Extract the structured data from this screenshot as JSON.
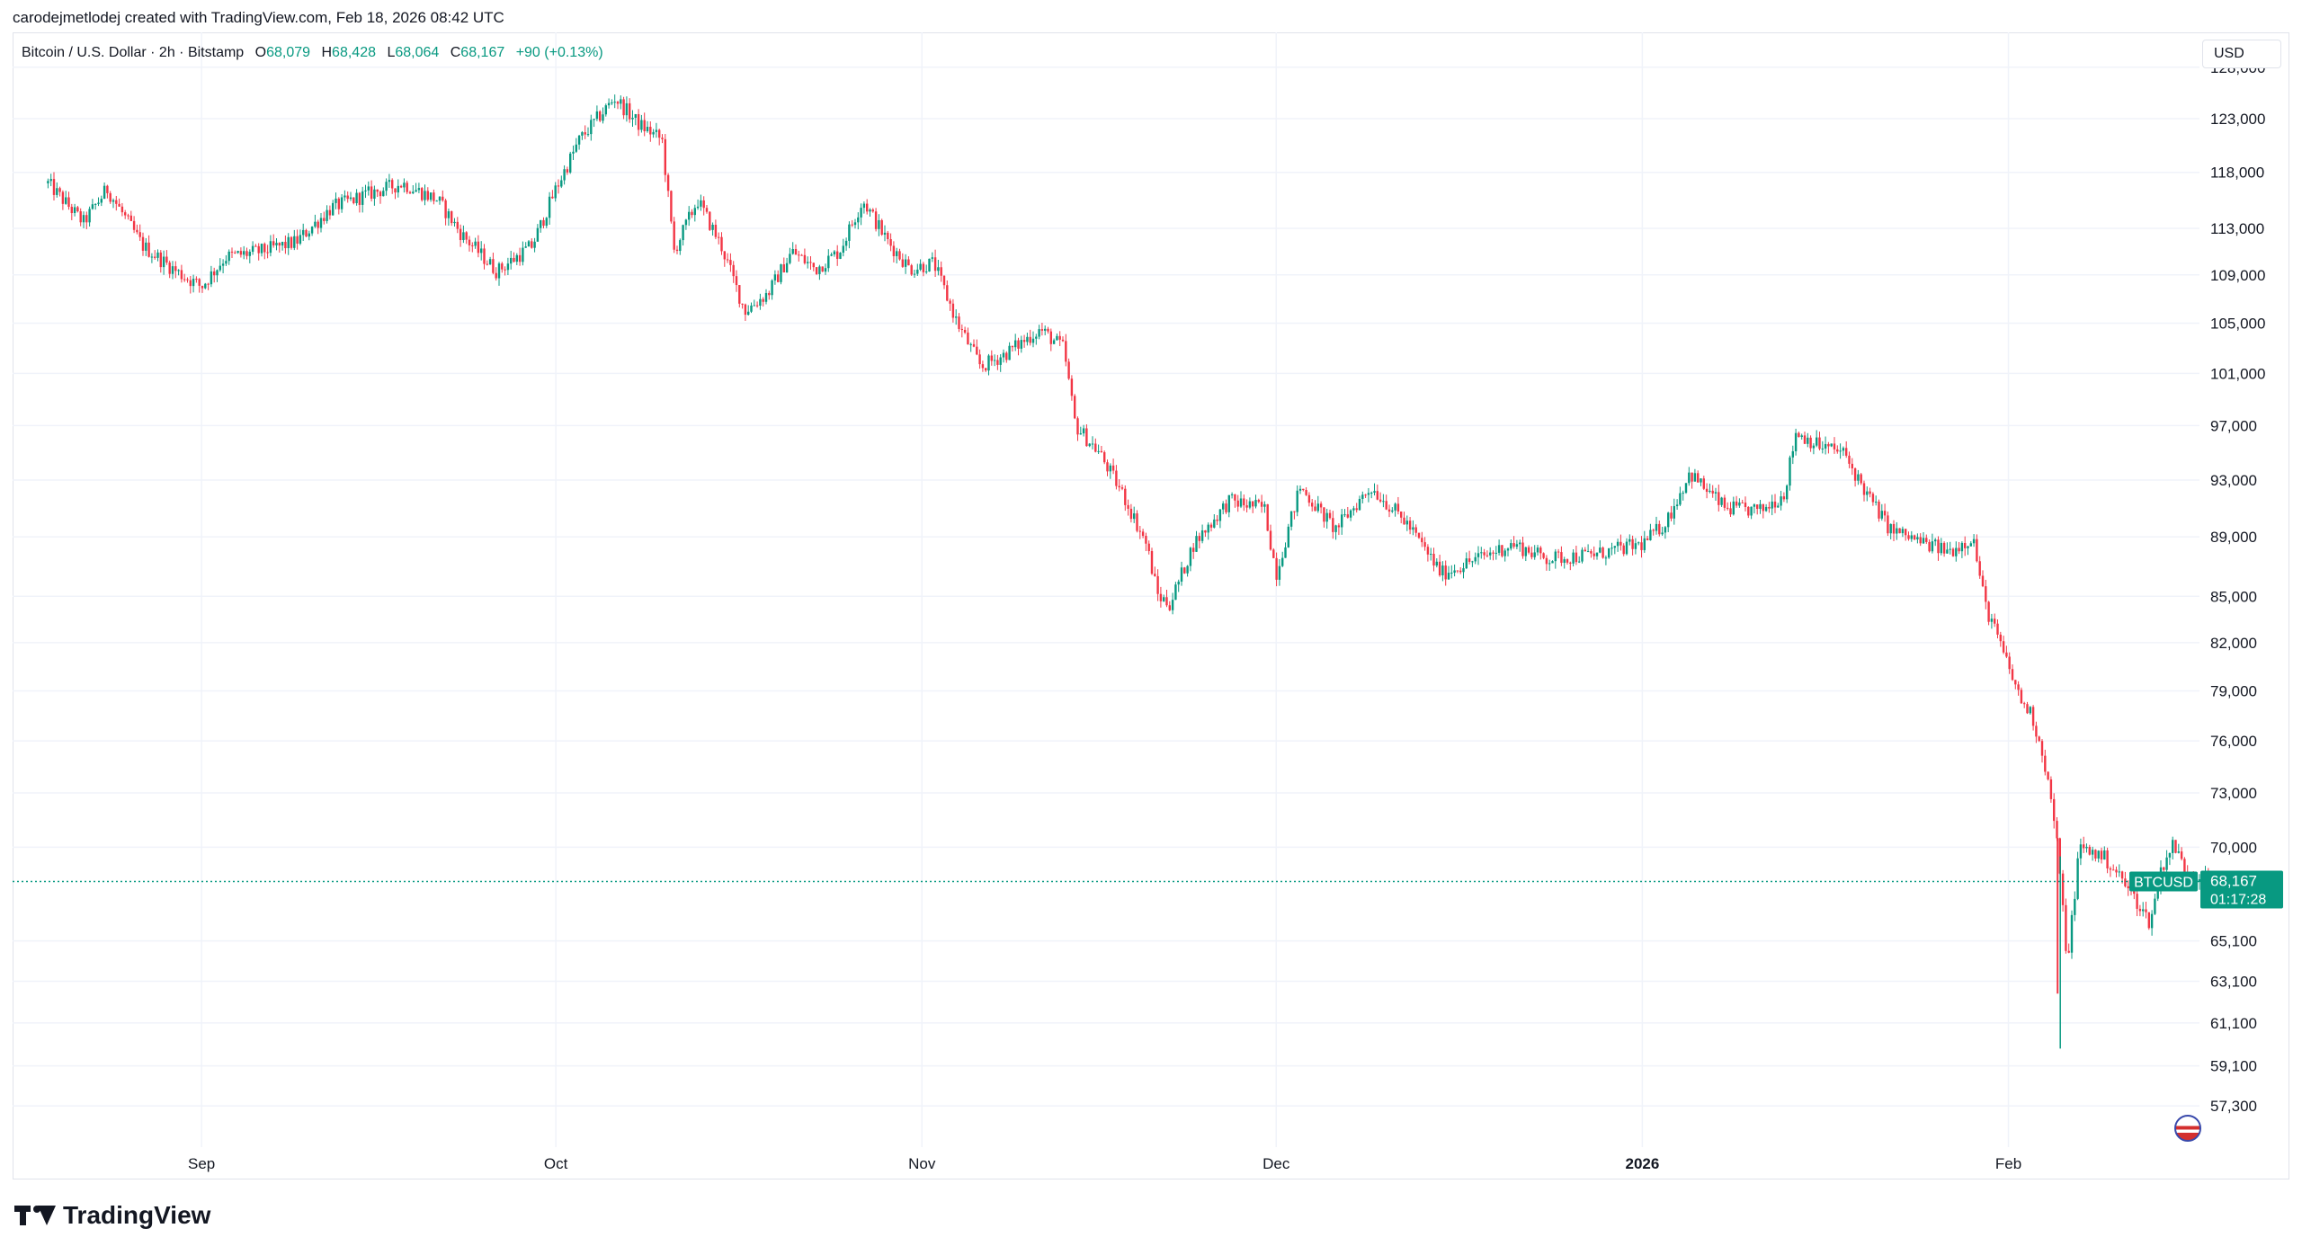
{
  "header": {
    "attribution": "carodejmetlodej created with TradingView.com, Feb 18, 2026 08:42 UTC"
  },
  "legend": {
    "symbol": "Bitcoin / U.S. Dollar · 2h · Bitstamp",
    "open_label": "O",
    "open": "68,079",
    "high_label": "H",
    "high": "68,428",
    "low_label": "L",
    "low": "68,064",
    "close_label": "C",
    "close": "68,167",
    "change": "+90 (+0.13%)"
  },
  "currency": "USD",
  "price_tag": {
    "ticker": "BTCUSD",
    "price": "68,167",
    "countdown": "01:17:28",
    "color": "#089981"
  },
  "colors": {
    "up": "#089981",
    "down": "#f23645",
    "grid": "#f0f3fa",
    "text": "#131722"
  },
  "footer": {
    "brand": "TradingView",
    "logo_icon": "tradingview-logo-icon",
    "flag_icon": "us-flag-icon"
  },
  "chart_data": {
    "type": "candlestick",
    "x_ticks": [
      {
        "label": "Sep",
        "bold": false
      },
      {
        "label": "Oct",
        "bold": false
      },
      {
        "label": "Nov",
        "bold": false
      },
      {
        "label": "Dec",
        "bold": false
      },
      {
        "label": "2026",
        "bold": true
      },
      {
        "label": "Feb",
        "bold": false
      }
    ],
    "y_ticks": [
      57300,
      59100,
      61100,
      63100,
      65100,
      70000,
      73000,
      76000,
      79000,
      82000,
      85000,
      89000,
      93000,
      97000,
      101000,
      105000,
      109000,
      113000,
      118000,
      123000,
      128000
    ],
    "y_scale": "log",
    "ylim": [
      55500,
      131500
    ],
    "last_price": 68167,
    "close_path": [
      [
        "2025-08-19",
        117000
      ],
      [
        "2025-08-22",
        113500
      ],
      [
        "2025-08-24",
        116500
      ],
      [
        "2025-08-27",
        111500
      ],
      [
        "2025-08-30",
        109200
      ],
      [
        "2025-09-01",
        108000
      ],
      [
        "2025-09-03",
        110500
      ],
      [
        "2025-09-06",
        111000
      ],
      [
        "2025-09-09",
        111800
      ],
      [
        "2025-09-12",
        114800
      ],
      [
        "2025-09-15",
        116000
      ],
      [
        "2025-09-18",
        117000
      ],
      [
        "2025-09-21",
        115500
      ],
      [
        "2025-09-23",
        112500
      ],
      [
        "2025-09-26",
        109300
      ],
      [
        "2025-09-29",
        111500
      ],
      [
        "2025-10-01",
        116500
      ],
      [
        "2025-10-03",
        121000
      ],
      [
        "2025-10-06",
        125000
      ],
      [
        "2025-10-08",
        122500
      ],
      [
        "2025-10-10",
        121000
      ],
      [
        "2025-10-11",
        111000
      ],
      [
        "2025-10-13",
        115500
      ],
      [
        "2025-10-15",
        111500
      ],
      [
        "2025-10-17",
        106000
      ],
      [
        "2025-10-19",
        107500
      ],
      [
        "2025-10-21",
        111000
      ],
      [
        "2025-10-23",
        109500
      ],
      [
        "2025-10-25",
        111000
      ],
      [
        "2025-10-27",
        115500
      ],
      [
        "2025-10-29",
        112000
      ],
      [
        "2025-10-31",
        109500
      ],
      [
        "2025-11-02",
        110000
      ],
      [
        "2025-11-04",
        105000
      ],
      [
        "2025-11-06",
        101500
      ],
      [
        "2025-11-08",
        102500
      ],
      [
        "2025-11-11",
        104500
      ],
      [
        "2025-11-13",
        103000
      ],
      [
        "2025-11-14",
        97000
      ],
      [
        "2025-11-16",
        95000
      ],
      [
        "2025-11-18",
        92000
      ],
      [
        "2025-11-20",
        88500
      ],
      [
        "2025-11-21",
        85000
      ],
      [
        "2025-11-22",
        84500
      ],
      [
        "2025-11-24",
        88500
      ],
      [
        "2025-11-27",
        91500
      ],
      [
        "2025-11-30",
        91000
      ],
      [
        "2025-12-01",
        86500
      ],
      [
        "2025-12-03",
        92500
      ],
      [
        "2025-12-06",
        89500
      ],
      [
        "2025-12-09",
        92500
      ],
      [
        "2025-12-12",
        90000
      ],
      [
        "2025-12-15",
        86500
      ],
      [
        "2025-12-18",
        87500
      ],
      [
        "2025-12-21",
        88500
      ],
      [
        "2025-12-24",
        87500
      ],
      [
        "2025-12-28",
        87800
      ],
      [
        "2026-01-01",
        88500
      ],
      [
        "2026-01-03",
        90000
      ],
      [
        "2026-01-05",
        93500
      ],
      [
        "2026-01-08",
        91000
      ],
      [
        "2026-01-11",
        90800
      ],
      [
        "2026-01-13",
        92000
      ],
      [
        "2026-01-14",
        96500
      ],
      [
        "2026-01-16",
        95500
      ],
      [
        "2026-01-18",
        95000
      ],
      [
        "2026-01-20",
        92000
      ],
      [
        "2026-01-22",
        89500
      ],
      [
        "2026-01-25",
        88500
      ],
      [
        "2026-01-27",
        88000
      ],
      [
        "2026-01-29",
        89000
      ],
      [
        "2026-01-30",
        84500
      ],
      [
        "2026-01-31",
        82500
      ],
      [
        "2026-02-02",
        78500
      ],
      [
        "2026-02-03",
        77500
      ],
      [
        "2026-02-04",
        75000
      ],
      [
        "2026-02-05",
        71000
      ],
      [
        "2026-02-06",
        64000
      ],
      [
        "2026-02-07",
        70000
      ],
      [
        "2026-02-09",
        69500
      ],
      [
        "2026-02-10",
        68800
      ],
      [
        "2026-02-12",
        67000
      ],
      [
        "2026-02-13",
        66000
      ],
      [
        "2026-02-14",
        69000
      ],
      [
        "2026-02-15",
        70200
      ],
      [
        "2026-02-16",
        68700
      ],
      [
        "2026-02-18",
        68167
      ]
    ]
  }
}
